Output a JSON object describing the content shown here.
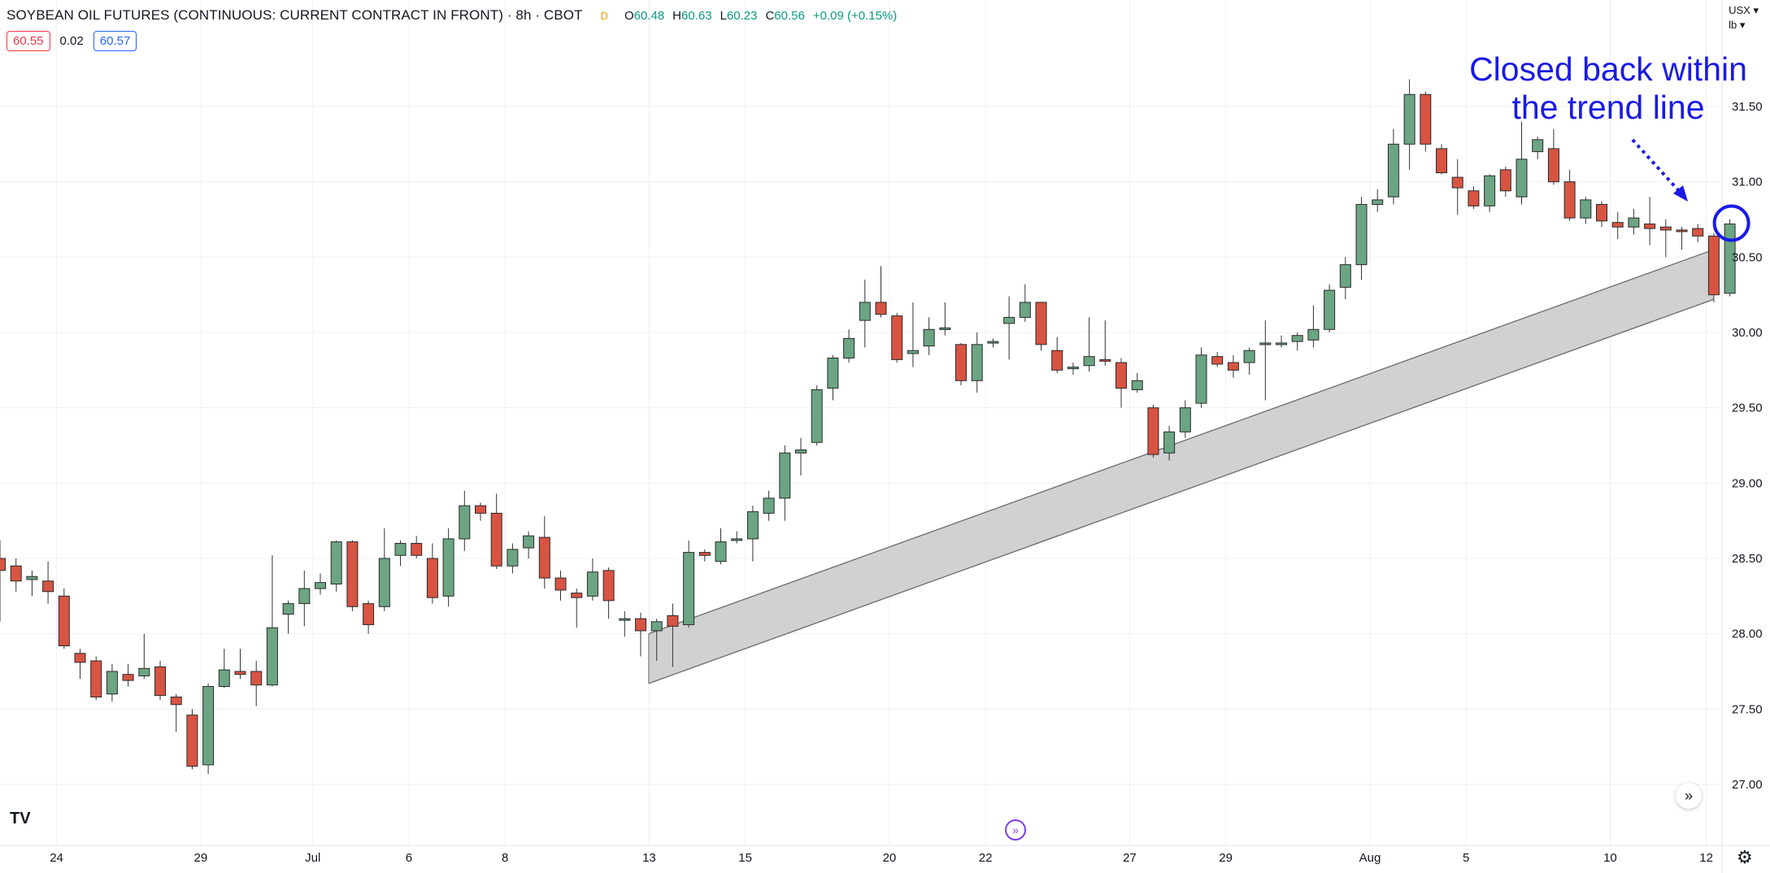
{
  "header": {
    "title": "SOYBEAN OIL FUTURES (CONTINUOUS: CURRENT CONTRACT IN FRONT) · 8h · CBOT",
    "badge": "D",
    "open": "60.48",
    "high": "60.63",
    "low": "60.23",
    "close": "60.56",
    "change": "+0.09 (+0.15%)",
    "open_key": "O",
    "high_key": "H",
    "low_key": "L",
    "close_key": "C"
  },
  "prices": {
    "sell": "60.55",
    "spread": "0.02",
    "buy": "60.57"
  },
  "currency": {
    "ccy": "USX",
    "unit": "lb"
  },
  "annotation": {
    "line1": "Closed back within",
    "line2": "the trend line"
  },
  "logo_text": "TV",
  "icons": {
    "nav": "double-chevron-right-icon",
    "goto": "goto-realtime-icon",
    "settings": "gear-icon"
  },
  "colors": {
    "up": "#6ba583",
    "down": "#d75442",
    "annotation": "#1a1ae6",
    "band": "#cccccc"
  },
  "chart_data": {
    "type": "candlestick",
    "y_axis": {
      "min": 26.8,
      "max": 31.9,
      "ticks": [
        "27.00",
        "27.50",
        "28.00",
        "28.50",
        "29.00",
        "29.50",
        "30.00",
        "30.50",
        "31.00",
        "31.50"
      ],
      "position": "right"
    },
    "x_ticks": [
      {
        "label": "24",
        "i": 1.5
      },
      {
        "label": "29",
        "i": 10.5
      },
      {
        "label": "Jul",
        "i": 17.5
      },
      {
        "label": "6",
        "i": 23.5
      },
      {
        "label": "8",
        "i": 29.5
      },
      {
        "label": "13",
        "i": 38.5
      },
      {
        "label": "15",
        "i": 44.5
      },
      {
        "label": "20",
        "i": 53.5
      },
      {
        "label": "22",
        "i": 59.5
      },
      {
        "label": "27",
        "i": 68.5
      },
      {
        "label": "29",
        "i": 74.5
      },
      {
        "label": "Aug",
        "i": 83.5
      },
      {
        "label": "5",
        "i": 89.5
      },
      {
        "label": "10",
        "i": 98.5
      },
      {
        "label": "12",
        "i": 104.5
      }
    ],
    "grid": true,
    "candles": [
      [
        28.5,
        28.42,
        28.62,
        28.08
      ],
      [
        28.45,
        28.35,
        28.5,
        28.28
      ],
      [
        28.36,
        28.38,
        28.42,
        28.25
      ],
      [
        28.35,
        28.28,
        28.48,
        28.2
      ],
      [
        28.25,
        27.92,
        28.3,
        27.9
      ],
      [
        27.87,
        27.81,
        27.9,
        27.7
      ],
      [
        27.82,
        27.58,
        27.85,
        27.56
      ],
      [
        27.6,
        27.75,
        27.8,
        27.55
      ],
      [
        27.73,
        27.69,
        27.8,
        27.65
      ],
      [
        27.72,
        27.77,
        28.0,
        27.7
      ],
      [
        27.78,
        27.59,
        27.82,
        27.56
      ],
      [
        27.58,
        27.53,
        27.6,
        27.35
      ],
      [
        27.46,
        27.12,
        27.5,
        27.1
      ],
      [
        27.13,
        27.65,
        27.67,
        27.07
      ],
      [
        27.65,
        27.76,
        27.9,
        27.64
      ],
      [
        27.75,
        27.73,
        27.9,
        27.7
      ],
      [
        27.75,
        27.66,
        27.82,
        27.52
      ],
      [
        27.66,
        28.04,
        28.52,
        27.65
      ],
      [
        28.13,
        28.2,
        28.22,
        28.0
      ],
      [
        28.2,
        28.3,
        28.42,
        28.05
      ],
      [
        28.3,
        28.34,
        28.4,
        28.26
      ],
      [
        28.33,
        28.61,
        28.62,
        28.28
      ],
      [
        28.61,
        28.18,
        28.62,
        28.15
      ],
      [
        28.2,
        28.06,
        28.22,
        28.0
      ],
      [
        28.18,
        28.5,
        28.7,
        28.15
      ],
      [
        28.52,
        28.6,
        28.62,
        28.45
      ],
      [
        28.6,
        28.52,
        28.65,
        28.5
      ],
      [
        28.5,
        28.24,
        28.6,
        28.2
      ],
      [
        28.25,
        28.63,
        28.7,
        28.18
      ],
      [
        28.63,
        28.85,
        28.95,
        28.55
      ],
      [
        28.85,
        28.8,
        28.87,
        28.75
      ],
      [
        28.8,
        28.45,
        28.93,
        28.43
      ],
      [
        28.45,
        28.56,
        28.6,
        28.4
      ],
      [
        28.57,
        28.65,
        28.68,
        28.5
      ],
      [
        28.64,
        28.37,
        28.78,
        28.3
      ],
      [
        28.37,
        28.29,
        28.42,
        28.22
      ],
      [
        28.27,
        28.24,
        28.3,
        28.04
      ],
      [
        28.25,
        28.41,
        28.5,
        28.22
      ],
      [
        28.42,
        28.22,
        28.44,
        28.1
      ],
      [
        28.1,
        28.1,
        28.15,
        27.98
      ],
      [
        28.1,
        28.02,
        28.14,
        27.85
      ],
      [
        28.02,
        28.08,
        28.1,
        27.82
      ],
      [
        28.12,
        28.05,
        28.2,
        27.78
      ],
      [
        28.06,
        28.54,
        28.62,
        28.04
      ],
      [
        28.54,
        28.52,
        28.56,
        28.48
      ],
      [
        28.48,
        28.61,
        28.7,
        28.46
      ],
      [
        28.62,
        28.63,
        28.68,
        28.6
      ],
      [
        28.63,
        28.81,
        28.85,
        28.48
      ],
      [
        28.8,
        28.9,
        28.95,
        28.75
      ],
      [
        28.9,
        29.2,
        29.25,
        28.75
      ],
      [
        29.2,
        29.22,
        29.3,
        29.05
      ],
      [
        29.27,
        29.62,
        29.65,
        29.25
      ],
      [
        29.63,
        29.83,
        29.85,
        29.55
      ],
      [
        29.83,
        29.96,
        30.02,
        29.8
      ],
      [
        30.08,
        30.2,
        30.35,
        29.9
      ],
      [
        30.2,
        30.12,
        30.44,
        30.1
      ],
      [
        30.11,
        29.82,
        30.13,
        29.8
      ],
      [
        29.86,
        29.88,
        30.2,
        29.77
      ],
      [
        29.91,
        30.02,
        30.1,
        29.85
      ],
      [
        30.02,
        30.03,
        30.2,
        29.98
      ],
      [
        29.92,
        29.68,
        29.93,
        29.65
      ],
      [
        29.68,
        29.92,
        30.0,
        29.6
      ],
      [
        29.93,
        29.94,
        29.96,
        29.9
      ],
      [
        30.06,
        30.1,
        30.24,
        29.82
      ],
      [
        30.1,
        30.2,
        30.32,
        30.07
      ],
      [
        30.2,
        29.92,
        30.2,
        29.88
      ],
      [
        29.88,
        29.75,
        29.97,
        29.73
      ],
      [
        29.76,
        29.77,
        29.8,
        29.72
      ],
      [
        29.78,
        29.84,
        30.1,
        29.74
      ],
      [
        29.82,
        29.81,
        30.08,
        29.78
      ],
      [
        29.8,
        29.63,
        29.83,
        29.5
      ],
      [
        29.62,
        29.68,
        29.73,
        29.6
      ],
      [
        29.5,
        29.19,
        29.52,
        29.17
      ],
      [
        29.2,
        29.34,
        29.38,
        29.15
      ],
      [
        29.34,
        29.5,
        29.55,
        29.3
      ],
      [
        29.53,
        29.85,
        29.9,
        29.5
      ],
      [
        29.84,
        29.79,
        29.87,
        29.77
      ],
      [
        29.8,
        29.75,
        29.85,
        29.7
      ],
      [
        29.8,
        29.88,
        29.9,
        29.72
      ],
      [
        29.92,
        29.93,
        30.08,
        29.55
      ],
      [
        29.92,
        29.93,
        29.98,
        29.9
      ],
      [
        29.94,
        29.98,
        30.0,
        29.88
      ],
      [
        29.95,
        30.02,
        30.18,
        29.9
      ],
      [
        30.02,
        30.28,
        30.32,
        30.0
      ],
      [
        30.3,
        30.45,
        30.5,
        30.22
      ],
      [
        30.45,
        30.85,
        30.9,
        30.35
      ],
      [
        30.85,
        30.88,
        30.95,
        30.8
      ],
      [
        30.9,
        31.25,
        31.35,
        30.85
      ],
      [
        31.25,
        31.58,
        31.68,
        31.08
      ],
      [
        31.58,
        31.25,
        31.6,
        31.2
      ],
      [
        31.22,
        31.06,
        31.25,
        31.05
      ],
      [
        31.03,
        30.96,
        31.15,
        30.78
      ],
      [
        30.94,
        30.84,
        30.97,
        30.82
      ],
      [
        30.84,
        31.04,
        31.05,
        30.8
      ],
      [
        31.08,
        30.94,
        31.1,
        30.9
      ],
      [
        30.9,
        31.15,
        31.4,
        30.85
      ],
      [
        31.2,
        31.28,
        31.3,
        31.15
      ],
      [
        31.22,
        31.0,
        31.35,
        30.98
      ],
      [
        31.0,
        30.76,
        31.08,
        30.74
      ],
      [
        30.76,
        30.88,
        30.9,
        30.72
      ],
      [
        30.85,
        30.74,
        30.87,
        30.7
      ],
      [
        30.73,
        30.7,
        30.8,
        30.62
      ],
      [
        30.7,
        30.76,
        30.82,
        30.65
      ],
      [
        30.72,
        30.69,
        30.9,
        30.58
      ],
      [
        30.7,
        30.68,
        30.75,
        30.5
      ],
      [
        30.68,
        30.67,
        30.7,
        30.55
      ],
      [
        30.69,
        30.64,
        30.72,
        30.6
      ],
      [
        30.64,
        30.25,
        30.66,
        30.2
      ],
      [
        30.26,
        30.72,
        30.75,
        30.24
      ]
    ],
    "band": {
      "start_i": 40.5,
      "end_i": 107.0,
      "upper": [
        28.0,
        30.55
      ],
      "lower": [
        27.67,
        30.22
      ]
    }
  }
}
